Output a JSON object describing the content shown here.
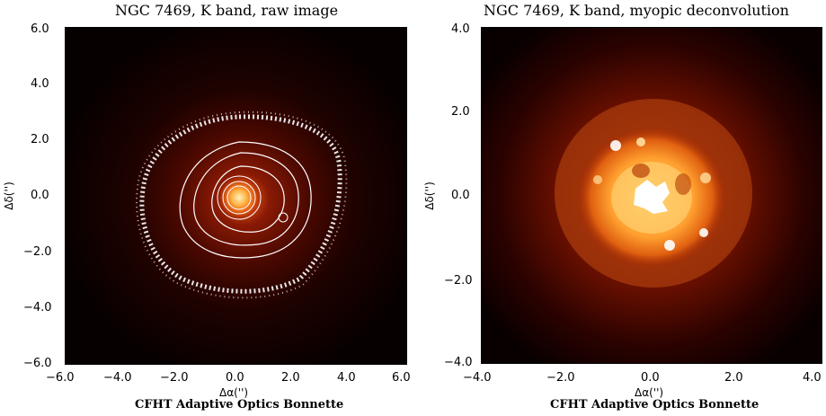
{
  "left_panel": {
    "title": "NGC 7469, K band, raw image",
    "credit": "CFHT Adaptive Optics Bonnette",
    "xlabel": "Δα('')",
    "ylabel": "Δδ('')",
    "x_ticks": [
      "−6.0",
      "−4.0",
      "−2.0",
      "0.0",
      "2.0",
      "4.0",
      "6.0"
    ],
    "y_ticks": [
      "6.0",
      "4.0",
      "2.0",
      "0.0",
      "−2.0",
      "−4.0",
      "−6.0"
    ],
    "colors": {
      "background": "#0a0000",
      "halo": "#5a0a00",
      "core": "#ffd070",
      "contour": "#ffffff"
    }
  },
  "right_panel": {
    "title": "NGC 7469, K band, myopic deconvolution",
    "credit": "CFHT Adaptive Optics Bonnette",
    "xlabel": "Δα('')",
    "ylabel": "Δδ('')",
    "x_ticks": [
      "−4.0",
      "−2.0",
      "0.0",
      "2.0",
      "4.0"
    ],
    "y_ticks": [
      "4.0",
      "2.0",
      "0.0",
      "−2.0",
      "−4.0"
    ],
    "colors": {
      "background": "#1a0000",
      "ring": "#ff9a20",
      "hotspot": "#ffffff"
    }
  }
}
